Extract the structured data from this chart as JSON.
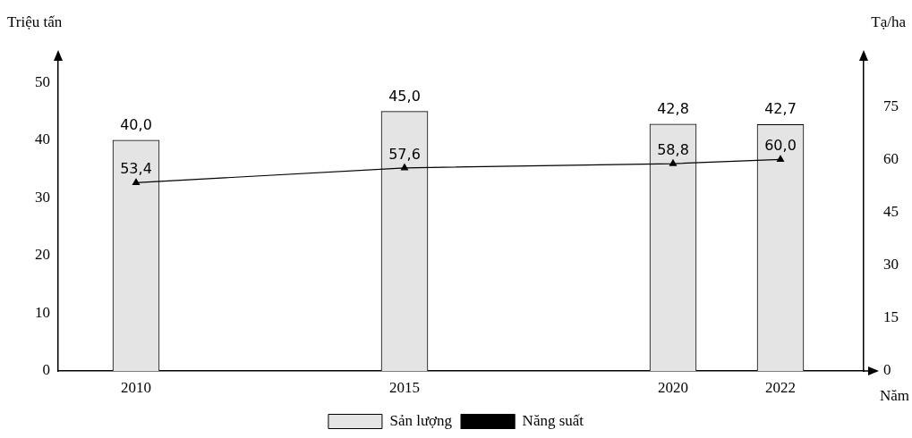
{
  "chart_data": {
    "type": "bar",
    "ylabel": "Triệu tấn",
    "y2label": "Tạ/ha",
    "xlabel": "Năm",
    "x": [
      2010,
      2015,
      2020,
      2022
    ],
    "series": [
      {
        "name": "Sản lượng",
        "color": "#e4e4e4",
        "values": [
          40.0,
          45.0,
          42.8,
          42.7
        ],
        "value_labels": [
          "40,0",
          "45,0",
          "42,8",
          "42,7"
        ]
      },
      {
        "name": "Năng suất",
        "type": "line",
        "axis": "y2",
        "color": "#000000",
        "marker": "triangle",
        "values": [
          53.4,
          57.6,
          58.8,
          60.0
        ],
        "value_labels": [
          "53,4",
          "57,6",
          "58,8",
          "60,0"
        ]
      }
    ],
    "xlim": [
      2008.55,
      2023.55
    ],
    "xticks": [
      2010,
      2015,
      2020,
      2022
    ],
    "ylim": [
      0,
      55
    ],
    "yticks": [
      0,
      10,
      20,
      30,
      40,
      50
    ],
    "y2lim": [
      0,
      90
    ],
    "y2ticks": [
      0,
      15,
      30,
      45,
      60,
      75
    ],
    "grid": false,
    "legend": "bottom"
  }
}
